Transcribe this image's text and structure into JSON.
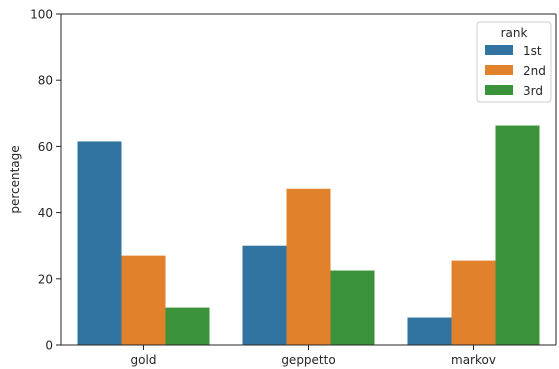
{
  "chart_data": {
    "type": "bar",
    "title": "",
    "xlabel": "",
    "ylabel": "percentage",
    "ylim": [
      0,
      100
    ],
    "yticks": [
      0,
      20,
      40,
      60,
      80,
      100
    ],
    "categories": [
      "gold",
      "geppetto",
      "markov"
    ],
    "legend_title": "rank",
    "legend_position": "top-right",
    "grid": false,
    "series": [
      {
        "name": "1st",
        "color": "#3274a1",
        "values": [
          61.5,
          30.0,
          8.3
        ]
      },
      {
        "name": "2nd",
        "color": "#e1812c",
        "values": [
          27.0,
          47.2,
          25.5
        ]
      },
      {
        "name": "3rd",
        "color": "#3a923a",
        "values": [
          11.3,
          22.5,
          66.3
        ]
      }
    ]
  }
}
